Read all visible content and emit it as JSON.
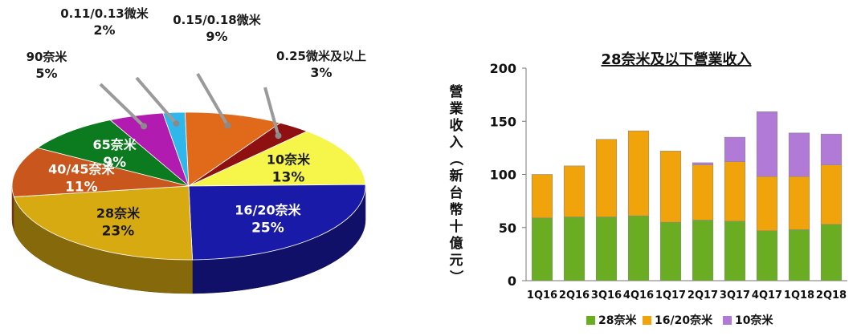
{
  "chart_data": [
    {
      "type": "pie",
      "slices": [
        {
          "label": "10奈米",
          "value": 13,
          "value_label": "13%",
          "color": "#f5f54a"
        },
        {
          "label": "16/20奈米",
          "value": 25,
          "value_label": "25%",
          "color": "#1a1aa8"
        },
        {
          "label": "28奈米",
          "value": 23,
          "value_label": "23%",
          "color": "#d8aa12"
        },
        {
          "label": "40/45奈米",
          "value": 11,
          "value_label": "11%",
          "color": "#c9561c"
        },
        {
          "label": "65奈米",
          "value": 9,
          "value_label": "9%",
          "color": "#0c7a1e"
        },
        {
          "label": "90奈米",
          "value": 5,
          "value_label": "5%",
          "color": "#b21bb0"
        },
        {
          "label": "0.11/0.13微米",
          "value": 2,
          "value_label": "2%",
          "color": "#2fb7ec"
        },
        {
          "label": "0.15/0.18微米",
          "value": 9,
          "value_label": "9%",
          "color": "#e06a1a"
        },
        {
          "label": "0.25微米及以上",
          "value": 3,
          "value_label": "3%",
          "color": "#8e1010"
        }
      ]
    },
    {
      "type": "bar",
      "stacked": true,
      "title": "28奈米及以下營業收入",
      "ylabel": "營業收入（新台幣十億元）",
      "ylim": [
        0,
        200
      ],
      "yticks": [
        0,
        50,
        100,
        150,
        200
      ],
      "categories": [
        "1Q16",
        "2Q16",
        "3Q16",
        "4Q16",
        "1Q17",
        "2Q17",
        "3Q17",
        "4Q17",
        "1Q18",
        "2Q18"
      ],
      "series": [
        {
          "name": "28奈米",
          "color": "#6aac22",
          "values": [
            59,
            60,
            60,
            61,
            55,
            57,
            56,
            47,
            48,
            53
          ]
        },
        {
          "name": "16/20奈米",
          "color": "#f0a30a",
          "values": [
            41,
            48,
            73,
            80,
            67,
            52,
            56,
            51,
            50,
            56
          ]
        },
        {
          "name": "10奈米",
          "color": "#b07ad6",
          "values": [
            0,
            0,
            0,
            0,
            0,
            2,
            23,
            61,
            41,
            29
          ]
        }
      ],
      "legend_position": "bottom"
    }
  ]
}
